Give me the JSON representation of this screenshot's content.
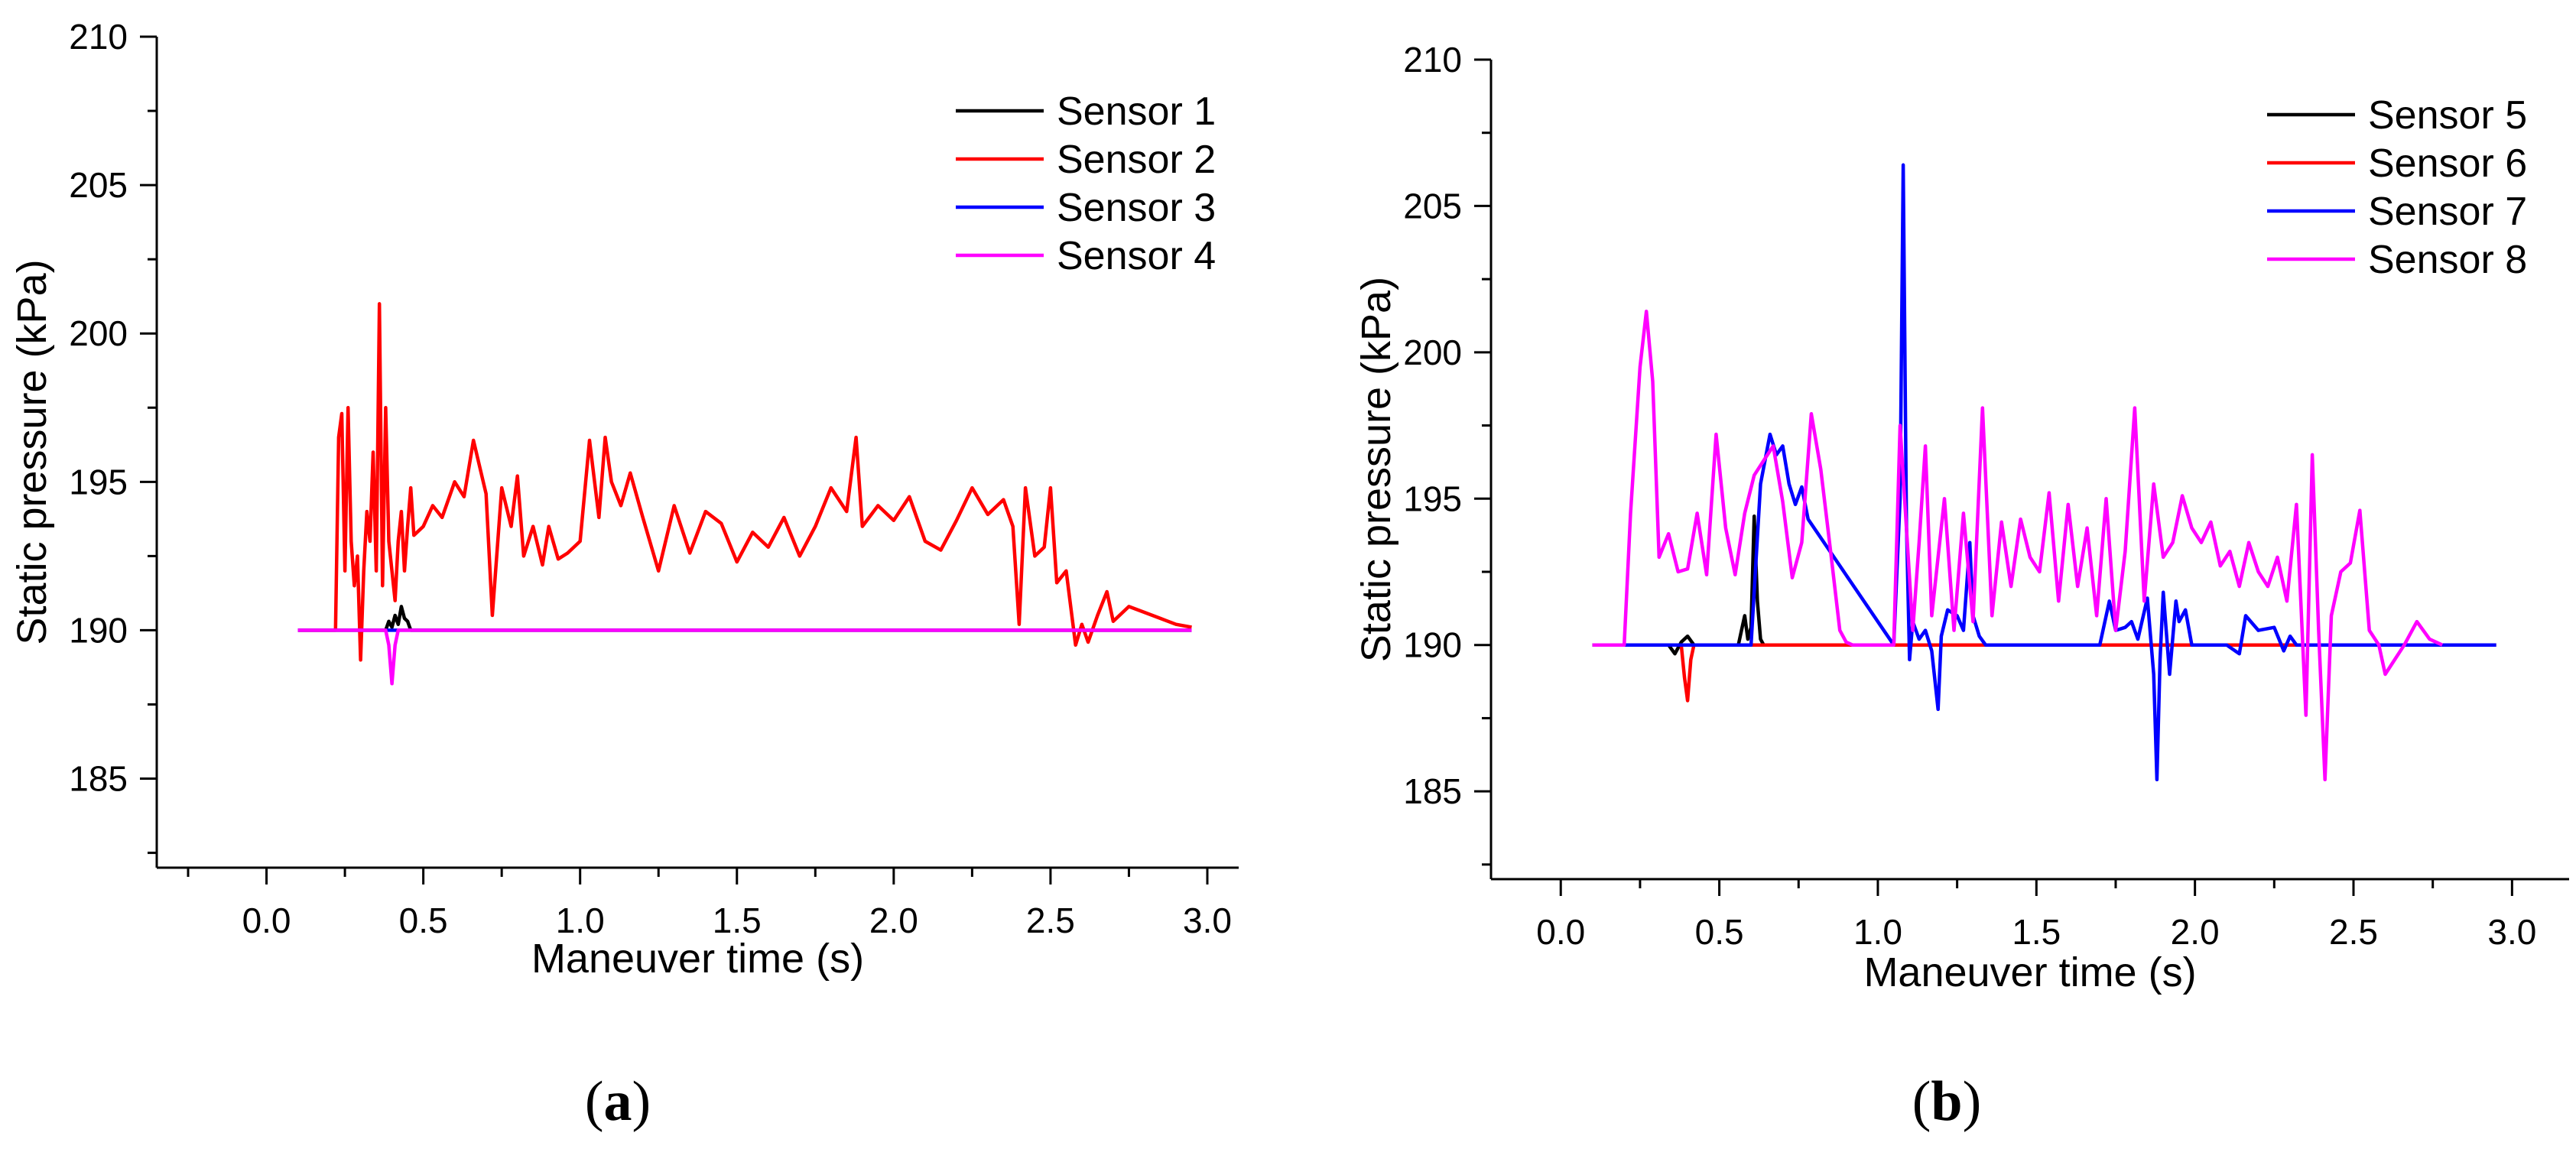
{
  "chart_data": [
    {
      "type": "line",
      "panel_label": "a",
      "xlabel": "Maneuver time (s)",
      "ylabel": "Static pressure (kPa)",
      "xlim": [
        -0.35,
        3.1
      ],
      "ylim": [
        182,
        210
      ],
      "xticks": [
        0.0,
        0.5,
        1.0,
        1.5,
        2.0,
        2.5,
        3.0
      ],
      "xtick_labels": [
        "0.0",
        "0.5",
        "1.0",
        "1.5",
        "2.0",
        "2.5",
        "3.0"
      ],
      "yticks": [
        185,
        190,
        195,
        200,
        205,
        210
      ],
      "ytick_labels": [
        "185",
        "190",
        "195",
        "200",
        "205",
        "210"
      ],
      "legend_position": "top-right",
      "series": [
        {
          "name": "Sensor 1",
          "color": "#000000",
          "x": [
            0.1,
            0.38,
            0.39,
            0.4,
            0.41,
            0.42,
            0.43,
            0.44,
            0.45,
            0.46,
            2.95
          ],
          "y": [
            190,
            190,
            190.3,
            190.1,
            190.5,
            190.2,
            190.8,
            190.4,
            190.3,
            190,
            190
          ]
        },
        {
          "name": "Sensor 2",
          "color": "#ff0000",
          "x": [
            0.1,
            0.22,
            0.23,
            0.24,
            0.25,
            0.26,
            0.27,
            0.28,
            0.29,
            0.3,
            0.31,
            0.32,
            0.33,
            0.34,
            0.35,
            0.36,
            0.37,
            0.38,
            0.39,
            0.4,
            0.41,
            0.42,
            0.43,
            0.44,
            0.45,
            0.46,
            0.47,
            0.5,
            0.53,
            0.56,
            0.6,
            0.63,
            0.66,
            0.7,
            0.72,
            0.75,
            0.78,
            0.8,
            0.82,
            0.85,
            0.88,
            0.9,
            0.93,
            0.96,
            1.0,
            1.03,
            1.06,
            1.08,
            1.1,
            1.13,
            1.16,
            1.2,
            1.25,
            1.3,
            1.35,
            1.4,
            1.45,
            1.5,
            1.55,
            1.6,
            1.65,
            1.7,
            1.75,
            1.8,
            1.85,
            1.88,
            1.9,
            1.95,
            2.0,
            2.05,
            2.1,
            2.15,
            2.2,
            2.25,
            2.3,
            2.35,
            2.38,
            2.4,
            2.42,
            2.45,
            2.48,
            2.5,
            2.52,
            2.55,
            2.58,
            2.6,
            2.62,
            2.65,
            2.68,
            2.7,
            2.75,
            2.8,
            2.85,
            2.9,
            2.95
          ],
          "y": [
            190,
            190,
            196.5,
            197.3,
            192,
            197.5,
            193,
            191.5,
            192.5,
            189,
            192,
            194,
            193,
            196,
            192,
            201,
            191.5,
            197.5,
            193,
            192,
            191,
            193,
            194,
            192,
            193.5,
            194.8,
            193.2,
            193.5,
            194.2,
            193.8,
            195,
            194.5,
            196.4,
            194.6,
            190.5,
            194.8,
            193.5,
            195.2,
            192.5,
            193.5,
            192.2,
            193.5,
            192.4,
            192.6,
            193,
            196.4,
            193.8,
            196.5,
            195,
            194.2,
            195.3,
            193.8,
            192,
            194.2,
            192.6,
            194,
            193.6,
            192.3,
            193.3,
            192.8,
            193.8,
            192.5,
            193.5,
            194.8,
            194,
            196.5,
            193.5,
            194.2,
            193.7,
            194.5,
            193,
            192.7,
            193.7,
            194.8,
            193.9,
            194.4,
            193.5,
            190.2,
            194.8,
            192.5,
            192.8,
            194.8,
            191.6,
            192,
            189.5,
            190.2,
            189.6,
            190.5,
            191.3,
            190.3,
            190.8,
            190.6,
            190.4,
            190.2,
            190.1
          ]
        },
        {
          "name": "Sensor 3",
          "color": "#0000ff",
          "x": [
            0.1,
            2.95
          ],
          "y": [
            190,
            190
          ]
        },
        {
          "name": "Sensor 4",
          "color": "#ff00ff",
          "x": [
            0.1,
            0.38,
            0.39,
            0.4,
            0.41,
            0.42,
            0.43,
            2.95
          ],
          "y": [
            190,
            190,
            189.5,
            188.2,
            189.5,
            190,
            190,
            190
          ]
        }
      ]
    },
    {
      "type": "line",
      "panel_label": "b",
      "xlabel": "Maneuver time (s)",
      "ylabel": "Static pressure (kPa)",
      "xlim": [
        -0.22,
        3.18
      ],
      "ylim": [
        182,
        210
      ],
      "xticks": [
        0.0,
        0.5,
        1.0,
        1.5,
        2.0,
        2.5,
        3.0
      ],
      "xtick_labels": [
        "0.0",
        "0.5",
        "1.0",
        "1.5",
        "2.0",
        "2.5",
        "3.0"
      ],
      "yticks": [
        185,
        190,
        195,
        200,
        205,
        210
      ],
      "ytick_labels": [
        "185",
        "190",
        "195",
        "200",
        "205",
        "210"
      ],
      "legend_position": "top-right",
      "series": [
        {
          "name": "Sensor 5",
          "color": "#000000",
          "x": [
            0.1,
            0.34,
            0.36,
            0.38,
            0.4,
            0.42,
            0.56,
            0.57,
            0.58,
            0.59,
            0.6,
            0.61,
            0.62,
            0.63,
            0.64,
            2.95
          ],
          "y": [
            190,
            190,
            189.7,
            190.1,
            190.3,
            190,
            190,
            190.5,
            191,
            190.2,
            190.6,
            194.4,
            191.5,
            190.2,
            190,
            190
          ]
        },
        {
          "name": "Sensor 6",
          "color": "#ff0000",
          "x": [
            0.1,
            0.38,
            0.39,
            0.4,
            0.41,
            0.42,
            2.95
          ],
          "y": [
            190,
            190,
            188.9,
            188.1,
            189.5,
            190,
            190
          ]
        },
        {
          "name": "Sensor 7",
          "color": "#0000ff",
          "x": [
            0.1,
            0.6,
            0.63,
            0.66,
            0.68,
            0.7,
            0.72,
            0.74,
            0.76,
            0.78,
            1.05,
            1.07,
            1.08,
            1.09,
            1.1,
            1.11,
            1.13,
            1.15,
            1.17,
            1.19,
            1.2,
            1.22,
            1.25,
            1.27,
            1.29,
            1.3,
            1.32,
            1.34,
            1.36,
            1.4,
            1.7,
            1.73,
            1.75,
            1.78,
            1.8,
            1.82,
            1.85,
            1.87,
            1.88,
            1.89,
            1.9,
            1.92,
            1.94,
            1.95,
            1.97,
            1.99,
            2.02,
            2.1,
            2.14,
            2.16,
            2.2,
            2.25,
            2.28,
            2.3,
            2.32,
            2.35,
            2.4,
            2.95
          ],
          "y": [
            190,
            190,
            195.5,
            197.2,
            196.5,
            196.8,
            195.5,
            194.8,
            195.4,
            194.3,
            190,
            195,
            206.4,
            194.2,
            189.5,
            190.8,
            190.2,
            190.5,
            189.8,
            187.8,
            190.3,
            191.2,
            191,
            190.5,
            193.5,
            191,
            190.3,
            190,
            190,
            190,
            190,
            191.5,
            190.5,
            190.6,
            190.8,
            190.2,
            191.6,
            189,
            185.4,
            189.5,
            191.8,
            189,
            191.5,
            190.8,
            191.2,
            190,
            190,
            190,
            189.7,
            191,
            190.5,
            190.6,
            189.8,
            190.3,
            190,
            190,
            190,
            190
          ]
        },
        {
          "name": "Sensor 8",
          "color": "#ff00ff",
          "x": [
            0.1,
            0.2,
            0.22,
            0.25,
            0.27,
            0.29,
            0.31,
            0.34,
            0.37,
            0.4,
            0.43,
            0.46,
            0.49,
            0.52,
            0.55,
            0.58,
            0.61,
            0.64,
            0.67,
            0.7,
            0.73,
            0.76,
            0.79,
            0.82,
            0.85,
            0.88,
            0.9,
            0.92,
            1.05,
            1.07,
            1.09,
            1.11,
            1.13,
            1.15,
            1.17,
            1.19,
            1.21,
            1.24,
            1.27,
            1.3,
            1.33,
            1.36,
            1.39,
            1.42,
            1.45,
            1.48,
            1.51,
            1.54,
            1.57,
            1.6,
            1.63,
            1.66,
            1.69,
            1.72,
            1.75,
            1.78,
            1.81,
            1.84,
            1.87,
            1.9,
            1.93,
            1.96,
            1.99,
            2.02,
            2.05,
            2.08,
            2.11,
            2.14,
            2.17,
            2.2,
            2.23,
            2.26,
            2.29,
            2.32,
            2.35,
            2.37,
            2.39,
            2.41,
            2.43,
            2.46,
            2.49,
            2.52,
            2.55,
            2.58,
            2.6,
            2.63,
            2.66,
            2.7,
            2.74,
            2.78
          ],
          "y": [
            190,
            190,
            194.5,
            199.5,
            201.4,
            199,
            193,
            193.8,
            192.5,
            192.6,
            194.5,
            192.4,
            197.2,
            194,
            192.4,
            194.5,
            195.8,
            196.3,
            196.8,
            194.9,
            192.3,
            193.5,
            197.9,
            196,
            193.3,
            190.5,
            190.1,
            190,
            190,
            197.5,
            194,
            190.5,
            193.5,
            196.8,
            191,
            193,
            195,
            190.5,
            194.5,
            190.8,
            198.1,
            191,
            194.2,
            192,
            194.3,
            193,
            192.5,
            195.2,
            191.5,
            194.8,
            192,
            194,
            191,
            195,
            190.5,
            193.2,
            198.1,
            191.5,
            195.5,
            193,
            193.5,
            195.1,
            194,
            193.5,
            194.2,
            192.7,
            193.2,
            192,
            193.5,
            192.5,
            192,
            193,
            191.5,
            194.8,
            187.6,
            196.5,
            190.5,
            185.4,
            191,
            192.5,
            192.8,
            194.6,
            190.5,
            190,
            189,
            189.5,
            190,
            190.8,
            190.2,
            190
          ]
        }
      ]
    }
  ]
}
